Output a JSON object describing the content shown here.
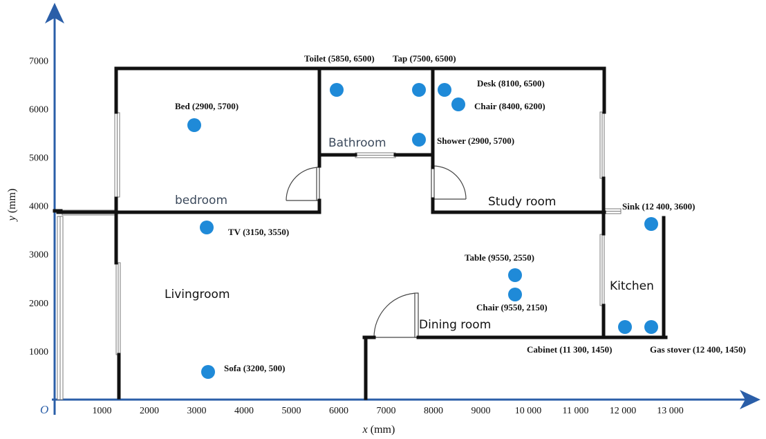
{
  "axes": {
    "origin_label": "O",
    "x_label_var": "x",
    "x_label_unit": " (mm)",
    "y_label_var": "y",
    "y_label_unit": " (mm)",
    "x_ticks": [
      {
        "value": 1000,
        "label": "1000"
      },
      {
        "value": 2000,
        "label": "2000"
      },
      {
        "value": 3000,
        "label": "3000"
      },
      {
        "value": 4000,
        "label": "4000"
      },
      {
        "value": 5000,
        "label": "5000"
      },
      {
        "value": 6000,
        "label": "6000"
      },
      {
        "value": 7000,
        "label": "7000"
      },
      {
        "value": 8000,
        "label": "8000"
      },
      {
        "value": 9000,
        "label": "9000"
      },
      {
        "value": 10000,
        "label": "10 000"
      },
      {
        "value": 11000,
        "label": "11 000"
      },
      {
        "value": 12000,
        "label": "12 000"
      },
      {
        "value": 13000,
        "label": "13 000"
      }
    ],
    "y_ticks": [
      {
        "value": 1000,
        "label": "1000"
      },
      {
        "value": 2000,
        "label": "2000"
      },
      {
        "value": 3000,
        "label": "3000"
      },
      {
        "value": 4000,
        "label": "4000"
      },
      {
        "value": 5000,
        "label": "5000"
      },
      {
        "value": 6000,
        "label": "6000"
      },
      {
        "value": 7000,
        "label": "7000"
      }
    ]
  },
  "rooms": [
    {
      "id": "bedroom",
      "label": "bedroom"
    },
    {
      "id": "bathroom",
      "label": "Bathroom"
    },
    {
      "id": "study-room",
      "label": "Study room"
    },
    {
      "id": "livingroom",
      "label": "Livingroom"
    },
    {
      "id": "kitchen",
      "label": "Kitchen"
    },
    {
      "id": "dining-room",
      "label": "Dining room"
    }
  ],
  "points": [
    {
      "id": "bed",
      "label": "Bed (2900,  5700)"
    },
    {
      "id": "toilet",
      "label": "Toilet (5850,  6500)"
    },
    {
      "id": "tap",
      "label": "Tap (7500,  6500)"
    },
    {
      "id": "desk",
      "label": "Desk (8100,  6500)"
    },
    {
      "id": "chair-study",
      "label": "Chair (8400,  6200)"
    },
    {
      "id": "shower",
      "label": "Shower (2900,  5700)"
    },
    {
      "id": "tv",
      "label": "TV (3150,  3550)"
    },
    {
      "id": "sink",
      "label": "Sink (12 400,  3600)"
    },
    {
      "id": "table",
      "label": "Table (9550,  2550)"
    },
    {
      "id": "chair-dining",
      "label": "Chair (9550,  2150)"
    },
    {
      "id": "sofa",
      "label": "Sofa (3200,  500)"
    },
    {
      "id": "cabinet",
      "label": "Cabinet (11 300,  1450)"
    },
    {
      "id": "gas-stove",
      "label": "Gas stover (12 400,  1450)"
    }
  ]
}
